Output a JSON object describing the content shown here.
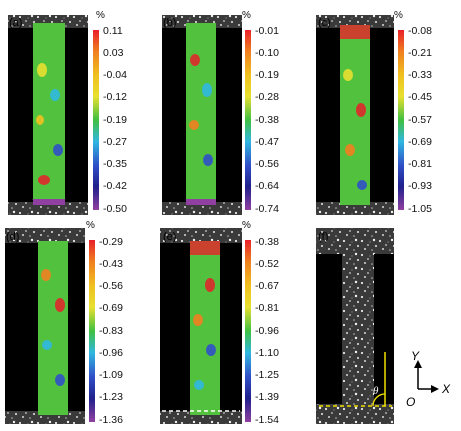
{
  "figure": {
    "unit_symbol": "%",
    "panels": [
      {
        "label": "(a)",
        "ticks": [
          "0.11",
          "0.03",
          "-0.04",
          "-0.12",
          "-0.19",
          "-0.27",
          "-0.35",
          "-0.42",
          "-0.50"
        ]
      },
      {
        "label": "(b)",
        "ticks": [
          "-0.01",
          "-0.10",
          "-0.19",
          "-0.28",
          "-0.38",
          "-0.47",
          "-0.56",
          "-0.64",
          "-0.74"
        ]
      },
      {
        "label": "(c)",
        "ticks": [
          "-0.08",
          "-0.21",
          "-0.33",
          "-0.45",
          "-0.57",
          "-0.69",
          "-0.81",
          "-0.93",
          "-1.05"
        ]
      },
      {
        "label": "(d)",
        "ticks": [
          "-0.29",
          "-0.43",
          "-0.56",
          "-0.69",
          "-0.83",
          "-0.96",
          "-1.09",
          "-1.23",
          "-1.36"
        ]
      },
      {
        "label": "(e)",
        "ticks": [
          "-0.38",
          "-0.52",
          "-0.67",
          "-0.81",
          "-0.96",
          "-1.10",
          "-1.25",
          "-1.39",
          "-1.54"
        ]
      },
      {
        "label": "(f)"
      }
    ],
    "axes": {
      "y_label": "Y",
      "x_label": "X",
      "origin_label": "O",
      "angle_label": "θ"
    },
    "colors": {
      "colorbar": [
        "#e8202a",
        "#f08020",
        "#f0c020",
        "#e8e030",
        "#40c040",
        "#30b8e0",
        "#3050c8",
        "#20208c",
        "#9040a0"
      ],
      "guide_line": "#f0e000"
    }
  }
}
